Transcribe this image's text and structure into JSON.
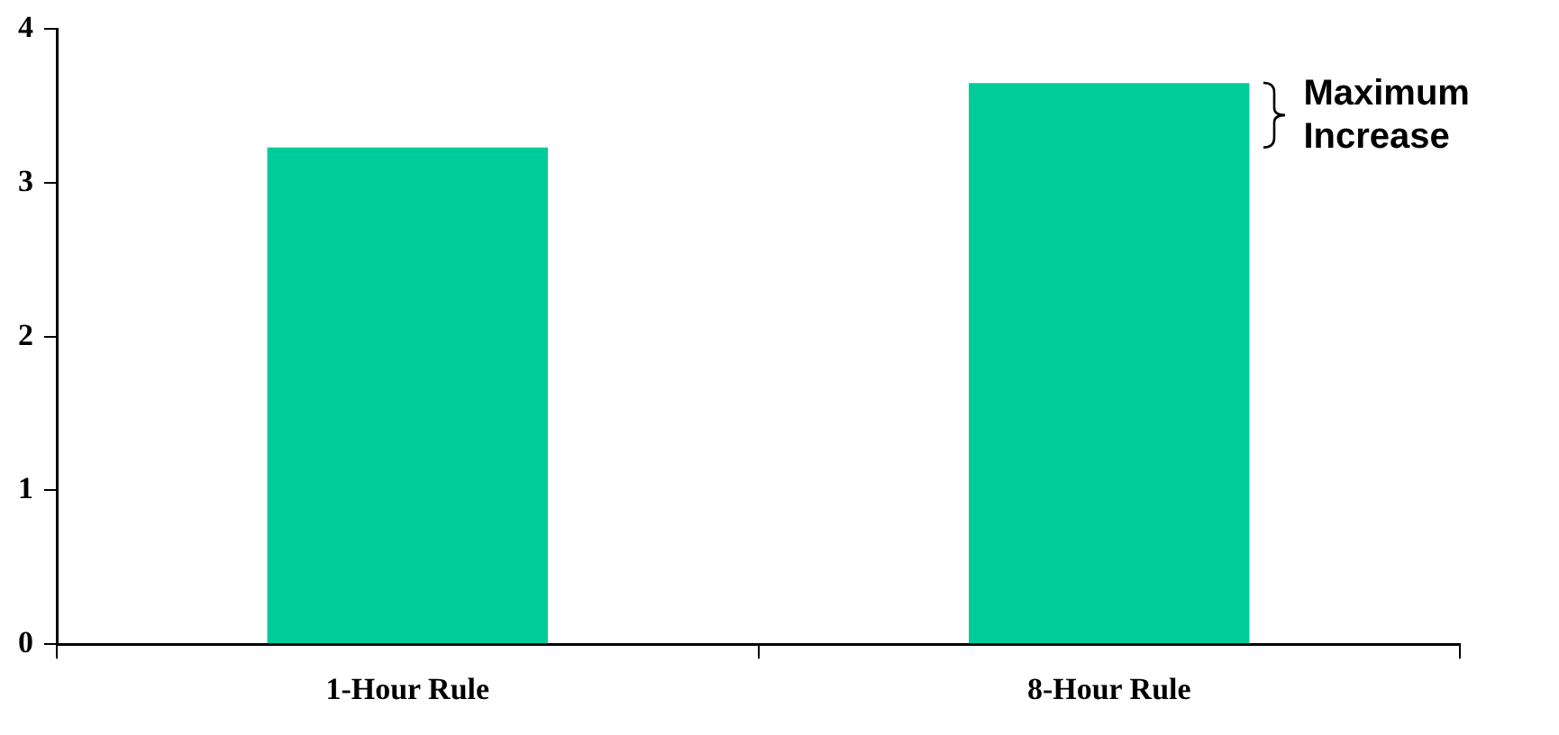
{
  "chart_data": {
    "type": "bar",
    "categories": [
      "1-Hour Rule",
      "8-Hour Rule"
    ],
    "values": [
      3.23,
      3.65
    ],
    "color": "#00cc99",
    "ylim": [
      0,
      4
    ],
    "yticks": [
      0,
      1,
      2,
      3,
      4
    ],
    "grid": false,
    "legend": false,
    "annotations": [
      "Maximum Increase"
    ]
  }
}
